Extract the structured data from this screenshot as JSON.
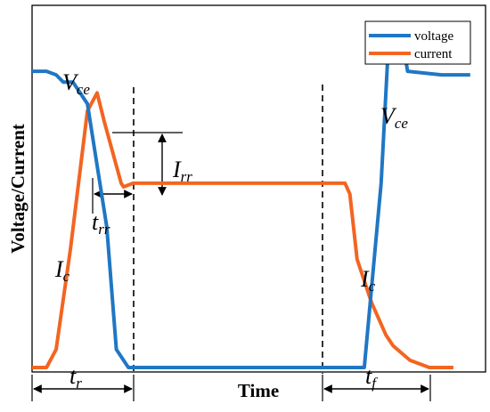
{
  "chart_data": {
    "type": "line",
    "title": "",
    "xlabel": "Time",
    "ylabel": "Voltage/Current",
    "legend": {
      "placement": "top-right",
      "entries": [
        "voltage",
        "current"
      ]
    },
    "series": [
      {
        "name": "voltage",
        "color": "#1f77c4",
        "x": [
          0,
          6,
          10,
          13,
          17,
          23,
          31,
          35,
          40,
          45,
          58,
          96,
          125,
          138,
          145,
          148,
          152,
          154,
          156,
          170,
          182
        ],
        "y": [
          82,
          82,
          81,
          79,
          79,
          73,
          39,
          5,
          0,
          0,
          0,
          0,
          0,
          0,
          51,
          89,
          93,
          90,
          82,
          81,
          81
        ]
      },
      {
        "name": "current",
        "color": "#f26522",
        "x": [
          0,
          6,
          10,
          16,
          23,
          27,
          30,
          37,
          38,
          42,
          50,
          100,
          125,
          130,
          132,
          133,
          135,
          141,
          147,
          150,
          157,
          165,
          175
        ],
        "y": [
          0,
          0,
          5,
          33,
          71,
          76,
          68,
          51,
          50,
          51,
          51,
          51,
          51,
          51,
          48,
          42,
          30,
          18,
          9,
          6,
          2,
          0,
          0
        ]
      }
    ],
    "annotations": {
      "vce_left": {
        "main": "V",
        "sub": "ce"
      },
      "vce_right": {
        "main": "V",
        "sub": "ce"
      },
      "ic_left": {
        "main": "I",
        "sub": "c"
      },
      "ic_right": {
        "main": "I",
        "sub": "c"
      },
      "irr": {
        "main": "I",
        "sub": "rr"
      },
      "trr": {
        "main": "t",
        "sub": "rr"
      },
      "tr": {
        "main": "t",
        "sub": "r"
      },
      "tf": {
        "main": "t",
        "sub": "f"
      }
    },
    "grid": false
  }
}
